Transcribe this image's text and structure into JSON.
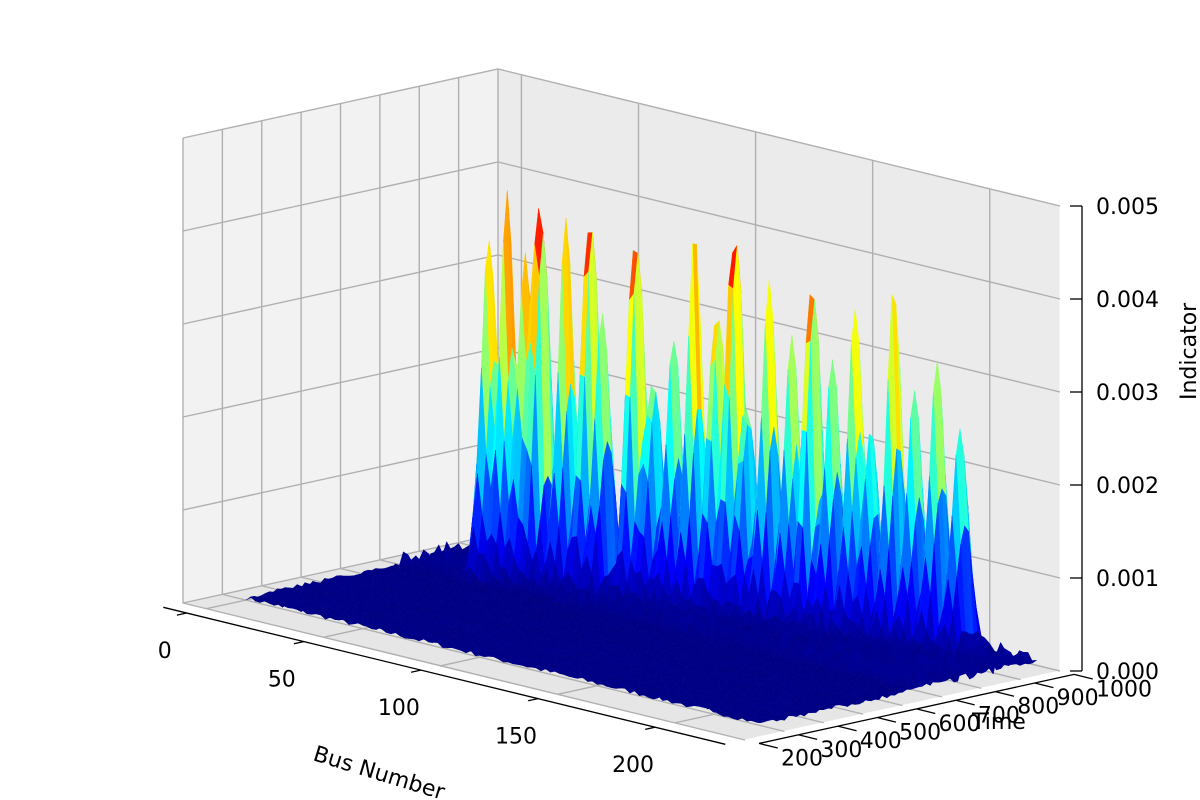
{
  "chart_data": {
    "type": "surface3d",
    "colormap": "jet",
    "xlabel": "Bus Number",
    "ylabel": "Time",
    "zlabel": "Indicator",
    "xlim": [
      -10,
      230
    ],
    "ylim": [
      200,
      1000
    ],
    "zlim": [
      0,
      0.005
    ],
    "xticks": [
      "0",
      "50",
      "100",
      "150",
      "200"
    ],
    "yticks": [
      "200",
      "300",
      "400",
      "500",
      "600",
      "700",
      "800",
      "900",
      "1000"
    ],
    "zticks": [
      "0.000",
      "0.001",
      "0.002",
      "0.003",
      "0.004",
      "0.005"
    ],
    "grid": true,
    "surface": {
      "x_range": [
        0,
        220
      ],
      "y_range": [
        300,
        1000
      ],
      "baseline": 5e-05,
      "noise_region_y": [
        700,
        1000
      ],
      "peaks": [
        {
          "x": 30,
          "y": 740,
          "z": 0.0036
        },
        {
          "x": 36,
          "y": 750,
          "z": 0.004
        },
        {
          "x": 42,
          "y": 760,
          "z": 0.0034
        },
        {
          "x": 47,
          "y": 770,
          "z": 0.0043
        },
        {
          "x": 56,
          "y": 780,
          "z": 0.0039
        },
        {
          "x": 63,
          "y": 800,
          "z": 0.0044
        },
        {
          "x": 70,
          "y": 790,
          "z": 0.003
        },
        {
          "x": 79,
          "y": 820,
          "z": 0.0042
        },
        {
          "x": 85,
          "y": 830,
          "z": 0.0025
        },
        {
          "x": 92,
          "y": 840,
          "z": 0.0028
        },
        {
          "x": 100,
          "y": 845,
          "z": 0.0039
        },
        {
          "x": 107,
          "y": 860,
          "z": 0.0034
        },
        {
          "x": 113,
          "y": 870,
          "z": 0.0044
        },
        {
          "x": 119,
          "y": 865,
          "z": 0.0024
        },
        {
          "x": 126,
          "y": 880,
          "z": 0.0036
        },
        {
          "x": 134,
          "y": 890,
          "z": 0.0031
        },
        {
          "x": 141,
          "y": 900,
          "z": 0.004
        },
        {
          "x": 148,
          "y": 910,
          "z": 0.0029
        },
        {
          "x": 156,
          "y": 920,
          "z": 0.0035
        },
        {
          "x": 162,
          "y": 925,
          "z": 0.0022
        },
        {
          "x": 170,
          "y": 935,
          "z": 0.0037
        },
        {
          "x": 178,
          "y": 940,
          "z": 0.0027
        },
        {
          "x": 186,
          "y": 950,
          "z": 0.0031
        },
        {
          "x": 194,
          "y": 960,
          "z": 0.0024
        }
      ]
    }
  }
}
